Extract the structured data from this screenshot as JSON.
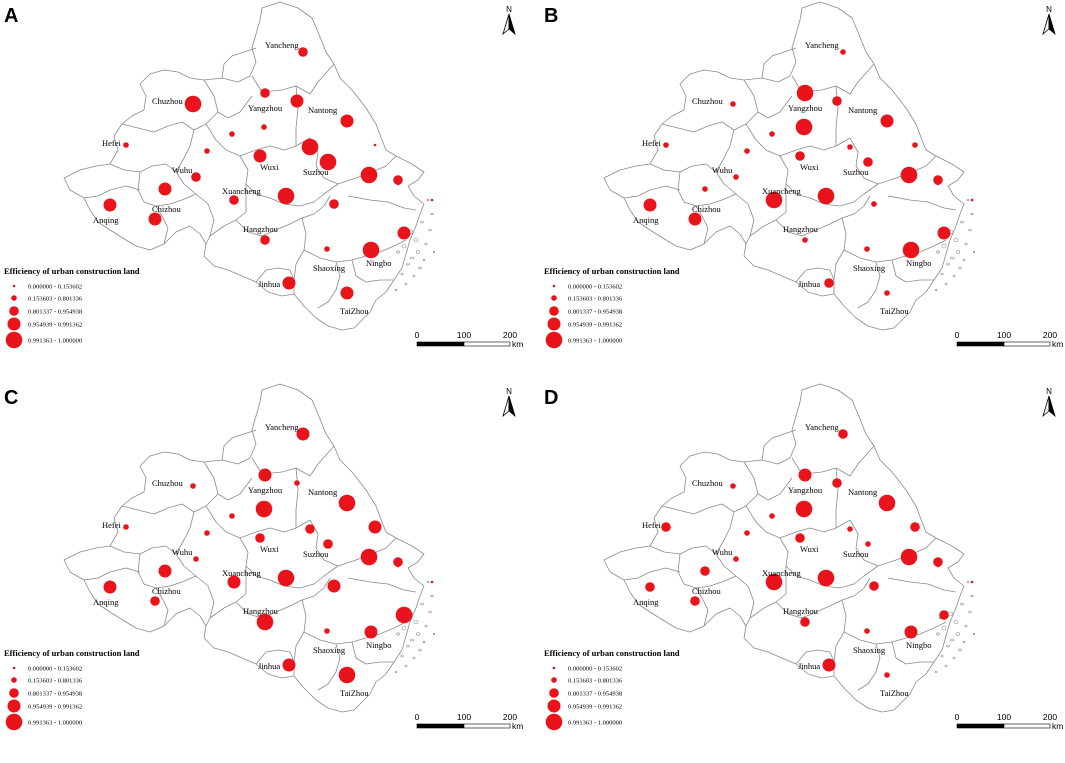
{
  "legend": {
    "title": "Efficiency of urban construction land",
    "classes": [
      "0.000000 - 0.153602",
      "0.153603 - 0.801336",
      "0.801337 - 0.954938",
      "0.954939 - 0.991362",
      "0.991363 - 1.000000"
    ],
    "symbol_color": "#e8131b"
  },
  "scale_bar": {
    "ticks": [
      "0",
      "100",
      "200"
    ],
    "unit": "km"
  },
  "north_arrow": {
    "label": "N"
  },
  "city_names": [
    "Yancheng",
    "Yangzhou",
    "Nantong",
    "Chuzhou",
    "Hefei",
    "Wuhu",
    "Wuxi",
    "Suzhou",
    "Xuancheng",
    "Anqing",
    "Chizhou",
    "Hangzhou",
    "Shaoxing",
    "Ningbo",
    "Jinhua",
    "TaiZhou"
  ],
  "panels": [
    {
      "letter": "A",
      "classes": [
        3,
        3,
        4,
        5,
        2,
        2,
        2,
        4,
        2,
        4,
        5,
        5,
        3,
        4,
        4,
        4,
        3,
        5,
        3,
        3,
        5,
        2,
        4,
        4,
        4,
        3,
        5,
        1,
        1,
        1
      ]
    },
    {
      "letter": "B",
      "classes": [
        2,
        5,
        3,
        2,
        2,
        5,
        2,
        4,
        2,
        3,
        2,
        3,
        2,
        2,
        4,
        4,
        5,
        5,
        2,
        2,
        5,
        2,
        3,
        2,
        4,
        3,
        5,
        2,
        1,
        1
      ]
    },
    {
      "letter": "C",
      "classes": [
        4,
        4,
        2,
        2,
        2,
        5,
        2,
        5,
        2,
        3,
        3,
        3,
        2,
        4,
        4,
        3,
        4,
        5,
        4,
        5,
        4,
        2,
        4,
        5,
        5,
        3,
        5,
        4,
        1,
        1
      ]
    },
    {
      "letter": "D",
      "classes": [
        3,
        4,
        3,
        2,
        3,
        5,
        2,
        5,
        2,
        3,
        2,
        2,
        2,
        3,
        3,
        3,
        5,
        5,
        3,
        3,
        4,
        2,
        4,
        2,
        3,
        3,
        5,
        3,
        1,
        1
      ]
    }
  ]
}
